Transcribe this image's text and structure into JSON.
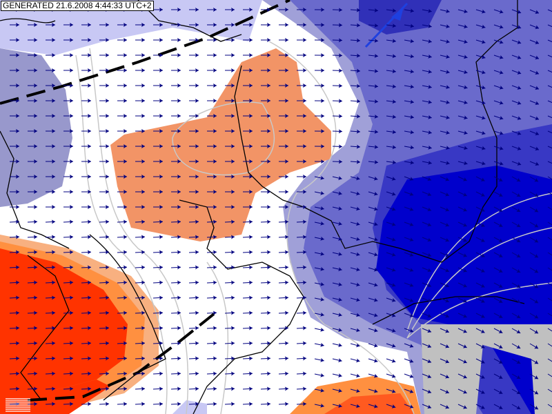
{
  "label": {
    "generated": "GENERATED 21.6.2008 4:44:33 UTC+2"
  },
  "colors": {
    "background": "#ffffff",
    "light_lavender": "#c8c8f4",
    "gray_blue": "#9898cc",
    "orange": "#f29466",
    "red": "#ff3300",
    "light_blue": "#8888cc",
    "mid_blue": "#5050c0",
    "deep_blue": "#0000cc",
    "gray_mask": "#c0c0c0",
    "wind_arrow": "#000080",
    "front": "#1e40e0"
  },
  "icons": [
    "wind-arrow-icon",
    "legend-icon",
    "cold-front-icon"
  ]
}
